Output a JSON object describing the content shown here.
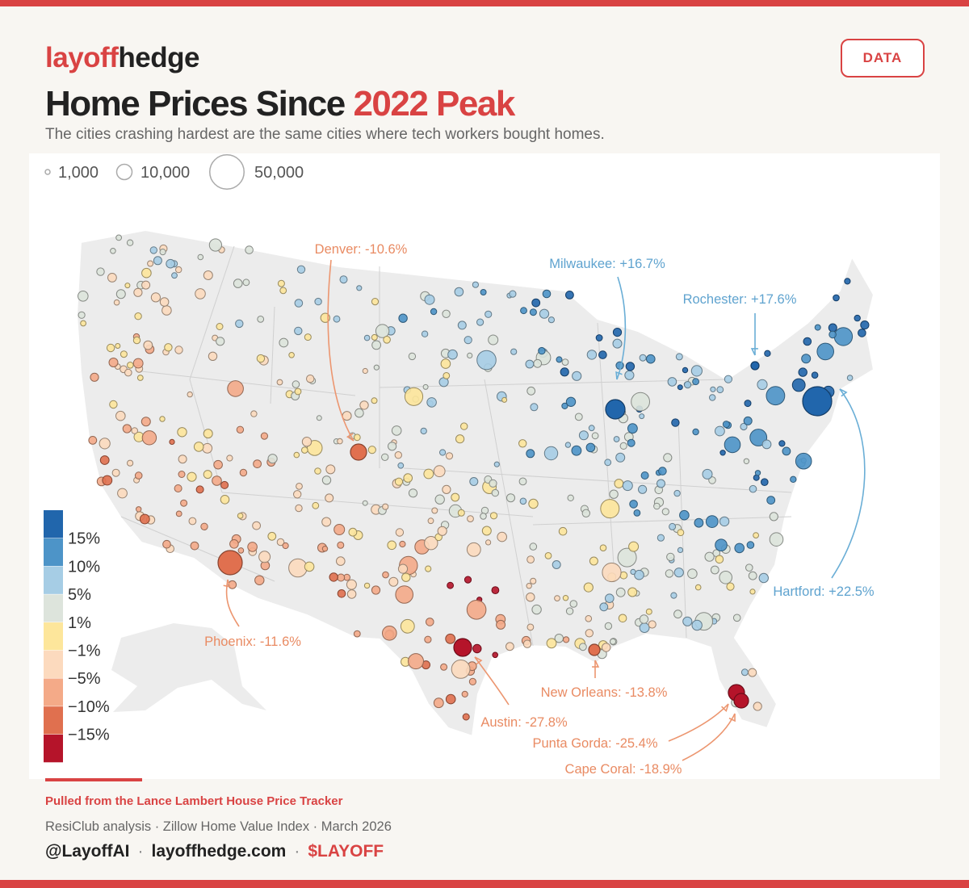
{
  "header": {
    "brand_a": "layoff",
    "brand_b": "hedge",
    "button": "DATA"
  },
  "title": {
    "lead": "Home Prices Since",
    "accent": "2022 Peak"
  },
  "subtitle": "The cities crashing hardest are the same cities where tech workers bought homes.",
  "size_legend": [
    {
      "value": 1000,
      "label": "1,000"
    },
    {
      "value": 10000,
      "label": "10,000"
    },
    {
      "value": 50000,
      "label": "50,000"
    }
  ],
  "color_legend": {
    "colors": [
      "#2166ac",
      "#4d94c8",
      "#a6cde5",
      "#dde4dc",
      "#fde69b",
      "#fcdabe",
      "#f4aa88",
      "#e0704f",
      "#b5142a"
    ],
    "ticks": [
      {
        "value": 15,
        "label": "15%"
      },
      {
        "value": 10,
        "label": "10%"
      },
      {
        "value": 5,
        "label": "5%"
      },
      {
        "value": 1,
        "label": "1%"
      },
      {
        "value": -1,
        "label": "−1%"
      },
      {
        "value": -5,
        "label": "−5%"
      },
      {
        "value": -10,
        "label": "−10%"
      },
      {
        "value": -15,
        "label": "−15%"
      }
    ]
  },
  "cities": [
    {
      "label": "Denver: -10.6%",
      "change": -10.6
    },
    {
      "label": "Milwaukee: +16.7%",
      "change": 16.7
    },
    {
      "label": "Rochester: +17.6%",
      "change": 17.6
    },
    {
      "label": "Hartford: +22.5%",
      "change": 22.5
    },
    {
      "label": "Phoenix: -11.6%",
      "change": -11.6
    },
    {
      "label": "Austin: -27.8%",
      "change": -27.8
    },
    {
      "label": "New Orleans: -13.8%",
      "change": -13.8
    },
    {
      "label": "Punta Gorda: -25.4%",
      "change": -25.4
    },
    {
      "label": "Cape Coral: -18.9%",
      "change": -18.9
    }
  ],
  "footer": {
    "source": "Pulled from the Lance Lambert House Price Tracker",
    "credit": "ResiClub analysis · Zillow Home Value Index · March 2026",
    "links": [
      "@LayoffAI",
      "layoffhedge.com",
      "$LAYOFF"
    ],
    "separator": "·"
  }
}
